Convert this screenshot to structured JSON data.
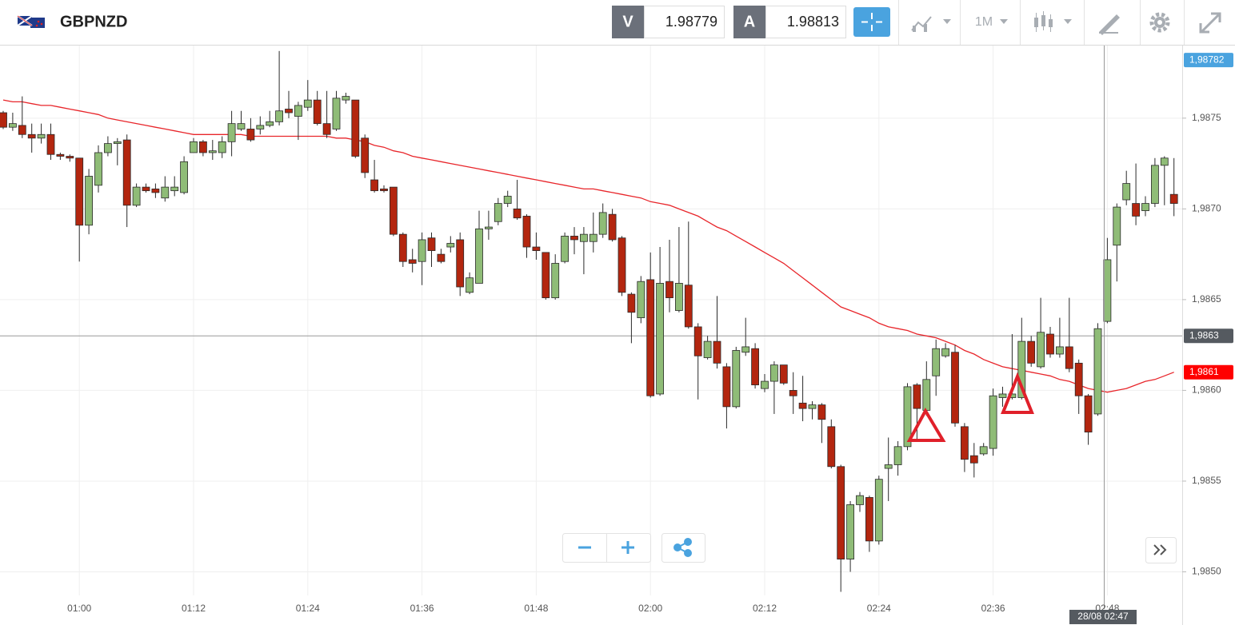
{
  "header": {
    "symbol": "GBPNZD",
    "bid_label": "V",
    "bid": "1.98779",
    "ask_label": "A",
    "ask": "1.98813",
    "timeframe": "1M"
  },
  "chart_data": {
    "type": "candlestick",
    "categories": [
      null,
      null,
      null,
      null,
      null,
      null,
      null,
      null,
      "01:00",
      null,
      null,
      null,
      null,
      null,
      null,
      null,
      null,
      null,
      null,
      null,
      "01:12",
      null,
      null,
      null,
      null,
      null,
      null,
      null,
      null,
      null,
      null,
      null,
      "01:24",
      null,
      null,
      null,
      null,
      null,
      null,
      null,
      null,
      null,
      null,
      null,
      "01:36",
      null,
      null,
      null,
      null,
      null,
      null,
      null,
      null,
      null,
      null,
      null,
      "01:48",
      null,
      null,
      null,
      null,
      null,
      null,
      null,
      null,
      null,
      null,
      null,
      "02:00",
      null,
      null,
      null,
      null,
      null,
      null,
      null,
      null,
      null,
      null,
      null,
      "02:12",
      null,
      null,
      null,
      null,
      null,
      null,
      null,
      null,
      null,
      null,
      null,
      "02:24",
      null,
      null,
      null,
      null,
      null,
      null,
      null,
      null,
      null,
      null,
      null,
      "02:36",
      null,
      null,
      null,
      null,
      null,
      null,
      null,
      null,
      null,
      null,
      null,
      "02:48",
      null,
      null,
      null,
      null,
      null,
      null,
      null
    ],
    "open": [
      1.98753,
      1.98745,
      1.98746,
      1.98741,
      1.98739,
      1.98741,
      1.9873,
      1.98729,
      1.98728,
      1.98691,
      1.98713,
      1.98731,
      1.98736,
      1.98738,
      1.98702,
      1.98712,
      1.98711,
      1.98706,
      1.9871,
      1.98709,
      1.98731,
      1.98737,
      1.98731,
      1.98731,
      1.98737,
      1.98744,
      1.98744,
      1.98744,
      1.98746,
      1.98748,
      1.98755,
      1.98751,
      1.98756,
      1.9876,
      1.98747,
      1.98744,
      1.9876,
      1.9876,
      1.98739,
      1.98716,
      1.98711,
      1.98712,
      1.98686,
      1.98672,
      1.98671,
      1.98684,
      1.98675,
      1.98679,
      1.98683,
      1.98654,
      1.98659,
      1.98689,
      1.98693,
      1.98703,
      1.987,
      1.98696,
      1.98679,
      1.98676,
      1.98651,
      1.98671,
      1.98685,
      1.98682,
      1.98682,
      1.98686,
      1.98697,
      1.98684,
      1.98653,
      1.9864,
      1.98661,
      1.98598,
      1.9866,
      1.98644,
      1.98658,
      1.98635,
      1.98618,
      1.98627,
      1.98613,
      1.98591,
      1.98621,
      1.98623,
      1.98601,
      1.98605,
      1.98614,
      1.986,
      1.98593,
      1.9859,
      1.98592,
      1.9858,
      1.98558,
      1.98507,
      1.98537,
      1.98541,
      1.98517,
      1.98557,
      1.98559,
      1.98569,
      1.98603,
      1.98589,
      1.98608,
      1.98619,
      1.98621,
      1.9858,
      1.98564,
      1.98565,
      1.98568,
      1.98596,
      1.98596,
      1.98596,
      1.98627,
      1.98613,
      1.98631,
      1.9862,
      1.98624,
      1.98615,
      1.98597,
      1.98587,
      1.98638,
      1.9868,
      1.98705,
      1.98703,
      1.98699,
      1.98703,
      1.98724,
      1.98708
    ],
    "high": [
      1.98754,
      1.98753,
      1.98762,
      1.98747,
      1.98747,
      1.98747,
      1.98731,
      1.9873,
      1.98728,
      1.98722,
      1.98735,
      1.9874,
      1.98739,
      1.98741,
      1.98714,
      1.98714,
      1.98714,
      1.98718,
      1.98718,
      1.98729,
      1.98739,
      1.98738,
      1.98738,
      1.9874,
      1.98754,
      1.98754,
      1.9875,
      1.98751,
      1.98754,
      1.98787,
      1.98765,
      1.98759,
      1.98771,
      1.98765,
      1.98765,
      1.98765,
      1.98764,
      1.9876,
      1.98741,
      1.98727,
      1.98713,
      1.98712,
      1.98687,
      1.98678,
      1.98687,
      1.98687,
      1.98678,
      1.98685,
      1.98687,
      1.98665,
      1.98699,
      1.98699,
      1.98706,
      1.9871,
      1.98716,
      1.98697,
      1.98687,
      1.98676,
      1.98675,
      1.98687,
      1.9869,
      1.9869,
      1.98698,
      1.98703,
      1.987,
      1.98685,
      1.98654,
      1.98663,
      1.98676,
      1.98679,
      1.98683,
      1.9869,
      1.98693,
      1.98637,
      1.9863,
      1.98652,
      1.98615,
      1.98624,
      1.9864,
      1.98626,
      1.98609,
      1.98616,
      1.98614,
      1.9861,
      1.98608,
      1.98594,
      1.98593,
      1.98584,
      1.98559,
      1.98539,
      1.98544,
      1.98542,
      1.98553,
      1.98574,
      1.98572,
      1.98604,
      1.98604,
      1.98616,
      1.98628,
      1.98626,
      1.98625,
      1.98582,
      1.98571,
      1.98571,
      1.98601,
      1.98602,
      1.98631,
      1.9864,
      1.9863,
      1.98651,
      1.98635,
      1.9864,
      1.98651,
      1.98617,
      1.98598,
      1.98637,
      1.98684,
      1.98703,
      1.98721,
      1.98725,
      1.98707,
      1.98728,
      1.98729,
      1.98728
    ],
    "low": [
      1.98744,
      1.98743,
      1.98739,
      1.98731,
      1.98736,
      1.98727,
      1.98727,
      1.98726,
      1.98671,
      1.98686,
      1.98709,
      1.98729,
      1.98724,
      1.9869,
      1.98701,
      1.98709,
      1.98706,
      1.98704,
      1.98707,
      1.98708,
      1.98731,
      1.98729,
      1.98727,
      1.98728,
      1.98729,
      1.98743,
      1.98737,
      1.98741,
      1.98745,
      1.98746,
      1.9875,
      1.98738,
      1.98754,
      1.98746,
      1.98739,
      1.98743,
      1.98758,
      1.98728,
      1.98717,
      1.98709,
      1.98709,
      1.98685,
      1.98668,
      1.98665,
      1.98658,
      1.98668,
      1.9867,
      1.98676,
      1.98652,
      1.98653,
      1.98659,
      1.98683,
      1.98691,
      1.98701,
      1.98694,
      1.98673,
      1.98672,
      1.9865,
      1.9865,
      1.9867,
      1.98675,
      1.98664,
      1.98676,
      1.98684,
      1.98682,
      1.98652,
      1.98626,
      1.98637,
      1.98596,
      1.98597,
      1.98643,
      1.98643,
      1.98634,
      1.98595,
      1.98617,
      1.98612,
      1.98579,
      1.9859,
      1.98619,
      1.98601,
      1.98599,
      1.98587,
      1.98603,
      1.98587,
      1.98583,
      1.98584,
      1.98571,
      1.98557,
      1.98489,
      1.985,
      1.98533,
      1.98511,
      1.98515,
      1.98539,
      1.98553,
      1.98567,
      1.98573,
      1.98586,
      1.98597,
      1.98618,
      1.9858,
      1.98555,
      1.98552,
      1.98564,
      1.98564,
      1.98591,
      1.98595,
      1.98595,
      1.98613,
      1.98612,
      1.98618,
      1.98618,
      1.9861,
      1.98587,
      1.9857,
      1.98586,
      1.98637,
      1.9866,
      1.98702,
      1.98691,
      1.98696,
      1.98701,
      1.98702,
      1.98696
    ],
    "close": [
      1.98745,
      1.98747,
      1.98741,
      1.98739,
      1.98741,
      1.9873,
      1.98729,
      1.98728,
      1.98691,
      1.98718,
      1.98731,
      1.98736,
      1.98737,
      1.98702,
      1.98712,
      1.9871,
      1.98709,
      1.98712,
      1.98712,
      1.98726,
      1.98737,
      1.98731,
      1.98732,
      1.98737,
      1.98747,
      1.98747,
      1.98738,
      1.98746,
      1.98748,
      1.98754,
      1.98753,
      1.98757,
      1.9876,
      1.98747,
      1.98741,
      1.98761,
      1.98762,
      1.98729,
      1.9872,
      1.9871,
      1.9871,
      1.98686,
      1.98671,
      1.9867,
      1.98683,
      1.98677,
      1.98671,
      1.98681,
      1.98657,
      1.98662,
      1.98689,
      1.9869,
      1.98703,
      1.98707,
      1.98695,
      1.98679,
      1.98677,
      1.98651,
      1.9867,
      1.98685,
      1.98683,
      1.98686,
      1.98686,
      1.98698,
      1.98683,
      1.98654,
      1.98643,
      1.9866,
      1.98597,
      1.98659,
      1.98651,
      1.98659,
      1.98635,
      1.98619,
      1.98627,
      1.98615,
      1.98591,
      1.98622,
      1.98624,
      1.98603,
      1.98605,
      1.98614,
      1.98604,
      1.98597,
      1.9859,
      1.98592,
      1.98584,
      1.98558,
      1.98507,
      1.98537,
      1.98542,
      1.98517,
      1.98551,
      1.98559,
      1.98569,
      1.98602,
      1.9859,
      1.98606,
      1.98623,
      1.98623,
      1.98582,
      1.98562,
      1.9856,
      1.98569,
      1.98597,
      1.98598,
      1.98598,
      1.98627,
      1.98615,
      1.98632,
      1.9862,
      1.98624,
      1.98612,
      1.98597,
      1.98577,
      1.98634,
      1.98672,
      1.98701,
      1.98714,
      1.98696,
      1.98703,
      1.98724,
      1.98728,
      1.98703
    ],
    "up_color": "#8fbc77",
    "down_color": "#b3260f",
    "outline_color": "#2a2a2a",
    "moving_average": {
      "color": "#e8262b",
      "values": [
        1.9876,
        1.98759,
        1.98759,
        1.98758,
        1.98757,
        1.98757,
        1.98756,
        1.98755,
        1.98754,
        1.98753,
        1.98752,
        1.9875,
        1.98749,
        1.98748,
        1.98747,
        1.98746,
        1.98745,
        1.98744,
        1.98743,
        1.98742,
        1.98741,
        1.98741,
        1.98741,
        1.98741,
        1.98741,
        1.98741,
        1.9874,
        1.9874,
        1.9874,
        1.9874,
        1.9874,
        1.9874,
        1.9874,
        1.9874,
        1.9874,
        1.98739,
        1.98739,
        1.98738,
        1.98737,
        1.98735,
        1.98734,
        1.98732,
        1.98731,
        1.98729,
        1.98728,
        1.98727,
        1.98726,
        1.98725,
        1.98724,
        1.98723,
        1.98722,
        1.98721,
        1.9872,
        1.98719,
        1.98718,
        1.98717,
        1.98716,
        1.98715,
        1.98714,
        1.98713,
        1.98712,
        1.98711,
        1.98711,
        1.9871,
        1.98709,
        1.98708,
        1.98707,
        1.98706,
        1.98704,
        1.98703,
        1.98702,
        1.987,
        1.98698,
        1.98696,
        1.98693,
        1.9869,
        1.98688,
        1.98685,
        1.98682,
        1.98679,
        1.98676,
        1.98673,
        1.9867,
        1.98666,
        1.98662,
        1.98658,
        1.98654,
        1.9865,
        1.98646,
        1.98644,
        1.98642,
        1.9864,
        1.98637,
        1.98635,
        1.98634,
        1.98633,
        1.98631,
        1.9863,
        1.98629,
        1.98627,
        1.98625,
        1.98622,
        1.9862,
        1.98617,
        1.98615,
        1.98613,
        1.98612,
        1.98611,
        1.9861,
        1.98609,
        1.98608,
        1.98606,
        1.98605,
        1.98603,
        1.98601,
        1.986,
        1.98599,
        1.986,
        1.98601,
        1.98603,
        1.98605,
        1.98606,
        1.98608,
        1.9861
      ]
    },
    "ylim": [
      1.98487,
      1.9879
    ],
    "yticks": [
      {
        "value": 1.985,
        "label": "1,9850"
      },
      {
        "value": 1.9855,
        "label": "1,9855"
      },
      {
        "value": 1.986,
        "label": "1,9860"
      },
      {
        "value": 1.9865,
        "label": "1,9865"
      },
      {
        "value": 1.987,
        "label": "1,9870"
      },
      {
        "value": 1.9875,
        "label": "1,9875"
      }
    ],
    "grid": true,
    "price_badges": [
      {
        "value": 1.98782,
        "label": "1,98782",
        "color": "#4aa3df"
      },
      {
        "value": 1.9863,
        "label": "1,9863",
        "color": "#555a60"
      },
      {
        "value": 1.9861,
        "label": "1,9861",
        "color": "#ff0000"
      }
    ],
    "crosshair": {
      "price": 1.9863,
      "time_label": "28/08 02:47"
    }
  }
}
